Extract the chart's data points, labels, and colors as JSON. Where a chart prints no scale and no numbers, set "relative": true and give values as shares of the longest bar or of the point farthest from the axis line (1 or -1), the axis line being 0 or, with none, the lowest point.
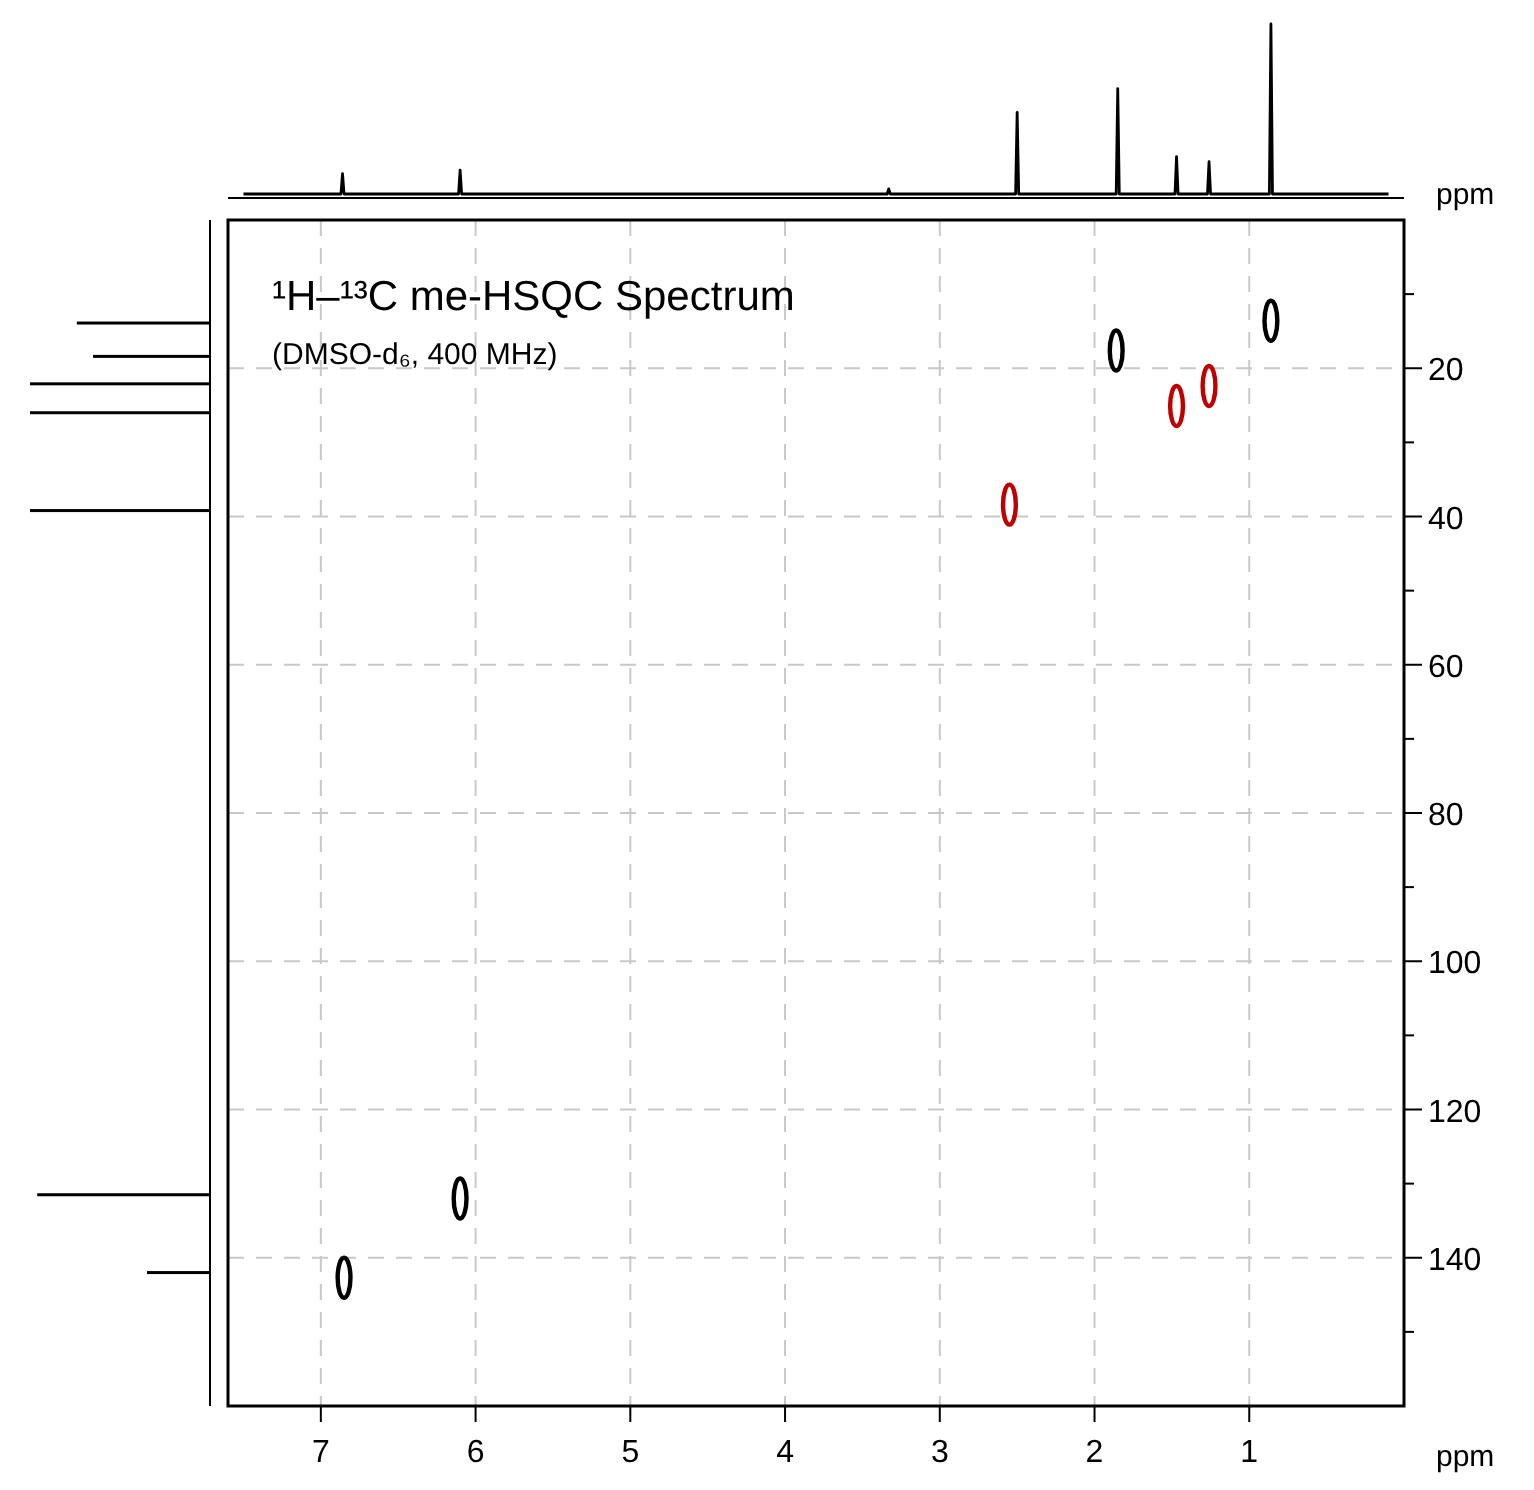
{
  "chart_data": [
    {
      "type": "line",
      "relative": true,
      "xlim": [
        7.6,
        0
      ],
      "tick_labels": false,
      "xlabel": "ppm",
      "series": [
        {
          "color": "#000000",
          "x": [
            7.5,
            6.87,
            6.86,
            6.85,
            6.11,
            6.1,
            6.09,
            3.34,
            3.33,
            3.32,
            2.51,
            2.5,
            2.49,
            1.86,
            1.85,
            1.84,
            1.48,
            1.47,
            1.46,
            1.27,
            1.26,
            1.25,
            0.87,
            0.86,
            0.85,
            0.1
          ],
          "values": [
            0,
            0,
            0.12,
            0,
            0,
            0.14,
            0,
            0,
            0.03,
            0,
            0,
            0.48,
            0,
            0,
            0.62,
            0,
            0,
            0.22,
            0,
            0,
            0.19,
            0,
            0,
            1,
            0,
            0
          ]
        }
      ]
    },
    {
      "type": "bar",
      "orientation": "horizontal",
      "relative": true,
      "ylim": [
        160,
        0
      ],
      "tick_labels": false,
      "series": [
        {
          "color": "#000000",
          "x": [
            13.9,
            18.4,
            22.1,
            26,
            39.2,
            131.5,
            142
          ],
          "values": [
            0.74,
            0.65,
            1,
            1,
            1,
            0.96,
            0.35
          ]
        }
      ]
    },
    {
      "type": "scatter",
      "title": "¹H–¹³C me-HSQC Spectrum",
      "subtitle": "(DMSO-d₆, 400 MHz)",
      "xlabel": "ppm",
      "xlim": [
        7.6,
        0
      ],
      "ylim": [
        160,
        0
      ],
      "grid": true,
      "xticks": [
        7,
        6,
        5,
        4,
        3,
        2,
        1
      ],
      "yticks": [
        {
          "value": 10,
          "label": null
        },
        20,
        {
          "value": 30,
          "label": null
        },
        40,
        {
          "value": 50,
          "label": null
        },
        60,
        {
          "value": 70,
          "label": null
        },
        80,
        {
          "value": 90,
          "label": null
        },
        100,
        {
          "value": 110,
          "label": null
        },
        120,
        {
          "value": 130,
          "label": null
        },
        140,
        {
          "value": 150,
          "label": null
        }
      ],
      "series": [
        {
          "color": "#000000",
          "x": [
            0.86,
            1.86,
            6.1,
            6.85
          ],
          "values": [
            13.6,
            17.6,
            132,
            142.7
          ]
        },
        {
          "color": "#c00000",
          "x": [
            1.47,
            1.26,
            2.55
          ],
          "values": [
            25.1,
            22.4,
            38.4
          ]
        }
      ]
    }
  ]
}
